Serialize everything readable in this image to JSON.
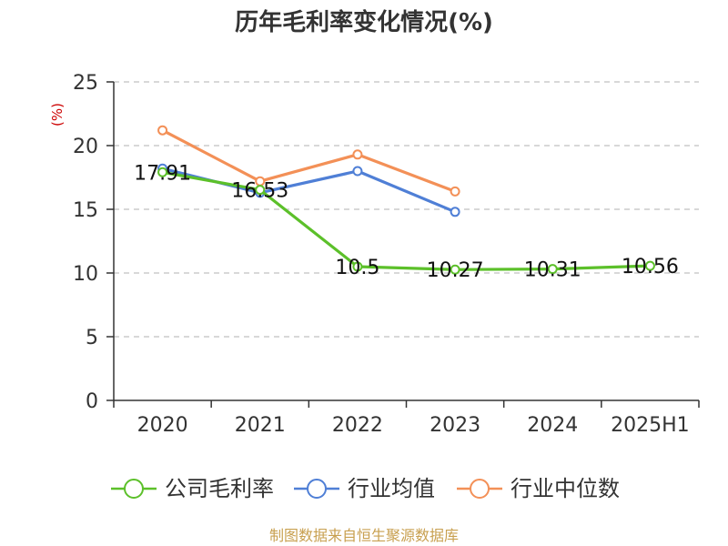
{
  "chart_data": {
    "type": "line",
    "title": "历年毛利率变化情况(%)",
    "ylabel": "(%)",
    "xlabel": "",
    "categories": [
      "2020",
      "2021",
      "2022",
      "2023",
      "2024",
      "2025H1"
    ],
    "ylim": [
      0,
      25
    ],
    "yticks": [
      0,
      5,
      10,
      15,
      20,
      25
    ],
    "grid": true,
    "legend_position": "bottom",
    "series": [
      {
        "name": "公司毛利率",
        "color": "#5cc02a",
        "values": [
          17.91,
          16.53,
          10.5,
          10.27,
          10.31,
          10.56
        ],
        "labels": [
          "17.91",
          "16.53",
          "10.5",
          "10.27",
          "10.31",
          "10.56"
        ]
      },
      {
        "name": "行业均值",
        "color": "#4f7fd6",
        "values": [
          18.2,
          16.3,
          18.0,
          14.8,
          null,
          null
        ]
      },
      {
        "name": "行业中位数",
        "color": "#f39057",
        "values": [
          21.2,
          17.2,
          19.3,
          16.4,
          null,
          null
        ]
      }
    ]
  },
  "source_text": "制图数据来自恒生聚源数据库"
}
